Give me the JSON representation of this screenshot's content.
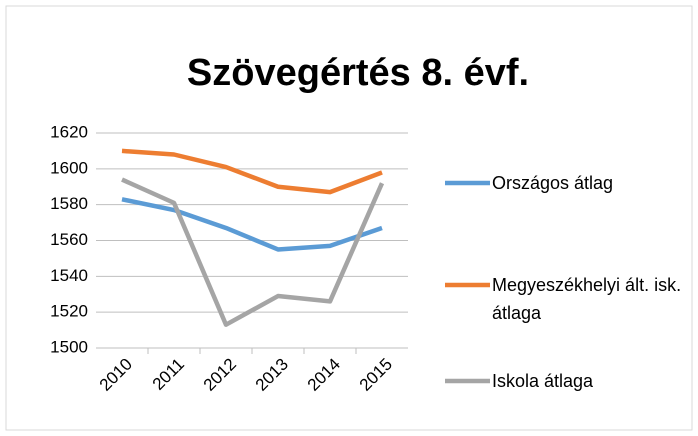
{
  "chart_data": {
    "type": "line",
    "title": "Szövegértés 8. évf.",
    "categories": [
      "2010",
      "2011",
      "2012",
      "2013",
      "2014",
      "2015"
    ],
    "series": [
      {
        "name": "Országos átlag",
        "color": "#5b9bd5",
        "values": [
          1583,
          1577,
          1567,
          1555,
          1557,
          1567
        ]
      },
      {
        "name": "Megyeszékhelyi ált. isk. átlaga",
        "color": "#ed7d31",
        "values": [
          1610,
          1608,
          1601,
          1590,
          1587,
          1598
        ]
      },
      {
        "name": "Iskola átlaga",
        "color": "#a5a5a5",
        "values": [
          1594,
          1581,
          1513,
          1529,
          1526,
          1592
        ]
      }
    ],
    "ylim": [
      1500,
      1620
    ],
    "yticks": [
      1500,
      1520,
      1540,
      1560,
      1580,
      1600,
      1620
    ],
    "grid": true,
    "legend": "right"
  }
}
